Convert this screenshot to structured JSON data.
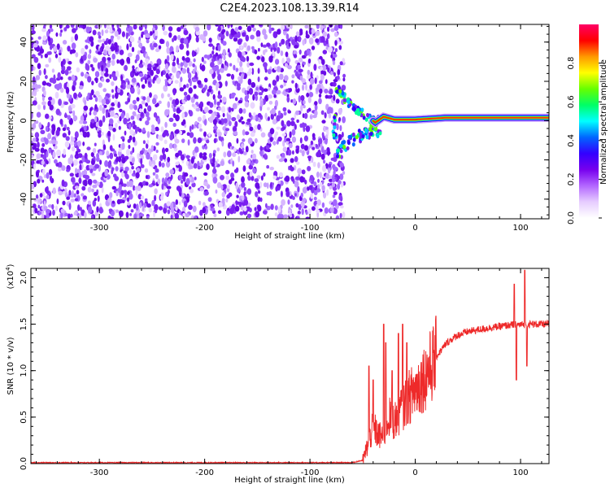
{
  "title": "C2E4.2023.108.13.39.R14",
  "chart_data": [
    {
      "type": "heatmap",
      "xlabel": "Height of straight line (km)",
      "ylabel": "Frequency (Hz)",
      "xlim": [
        -365,
        127
      ],
      "ylim": [
        -50,
        49
      ],
      "xticks": [
        -300,
        -200,
        -100,
        0,
        100
      ],
      "xtick_labels": [
        "-300",
        "-200",
        "-100",
        "0",
        "100"
      ],
      "yticks": [
        -40,
        -20,
        0,
        20,
        40
      ],
      "ytick_labels": [
        "-40",
        "-20",
        "0",
        "20",
        "40"
      ],
      "noise_region_x": [
        -365,
        -72
      ],
      "signal_line_x": [
        -72,
        127
      ],
      "signal_line_freq": [
        {
          "x": -75,
          "f": 17
        },
        {
          "x": -65,
          "f": 10
        },
        {
          "x": -55,
          "f": 5
        },
        {
          "x": -45,
          "f": 2
        },
        {
          "x": -38,
          "f": -1
        },
        {
          "x": -30,
          "f": 2
        },
        {
          "x": -20,
          "f": 0.5
        },
        {
          "x": 0,
          "f": 0.5
        },
        {
          "x": 30,
          "f": 1.5
        },
        {
          "x": 80,
          "f": 1.5
        },
        {
          "x": 127,
          "f": 1.5
        }
      ],
      "colorbar": {
        "label": "Normalized spectral amplitude",
        "ticks": [
          0.0,
          0.2,
          0.4,
          0.6,
          0.8
        ],
        "tick_labels": [
          "0.0",
          "0.2",
          "0.4",
          "0.6",
          "0.8"
        ],
        "range": [
          0.0,
          1.0
        ],
        "colors": [
          "#ffffff",
          "#e6ccff",
          "#b366ff",
          "#7700ee",
          "#3300ff",
          "#0066ff",
          "#00ffff",
          "#00ff66",
          "#66ff00",
          "#ffff00",
          "#ff9900",
          "#ff0000",
          "#ff0066"
        ]
      }
    },
    {
      "type": "line",
      "xlabel": "Height of straight line (km)",
      "ylabel": "SNR (10 * v/v)",
      "y_multiplier_label": "(x10",
      "y_multiplier_exp": "4",
      "y_multiplier_close": ")",
      "xlim": [
        -365,
        127
      ],
      "ylim": [
        0,
        2.1
      ],
      "xticks": [
        -300,
        -200,
        -100,
        0,
        100
      ],
      "xtick_labels": [
        "-300",
        "-200",
        "-100",
        "0",
        "100"
      ],
      "yticks": [
        0.0,
        0.5,
        1.0,
        1.5,
        2.0
      ],
      "ytick_labels": [
        "0.0",
        "0.5",
        "1.0",
        "1.5",
        "2.0"
      ],
      "line_color": "#ee2a2a",
      "envelope": [
        {
          "x": -365,
          "y": 0.005
        },
        {
          "x": -60,
          "y": 0.005
        },
        {
          "x": -50,
          "y": 0.03
        },
        {
          "x": -45,
          "y": 0.2
        },
        {
          "x": -40,
          "y": 0.4
        },
        {
          "x": -35,
          "y": 0.3
        },
        {
          "x": -30,
          "y": 0.3
        },
        {
          "x": -25,
          "y": 0.5
        },
        {
          "x": -20,
          "y": 0.45
        },
        {
          "x": -10,
          "y": 0.65
        },
        {
          "x": 0,
          "y": 0.8
        },
        {
          "x": 10,
          "y": 0.95
        },
        {
          "x": 20,
          "y": 1.15
        },
        {
          "x": 30,
          "y": 1.3
        },
        {
          "x": 40,
          "y": 1.38
        },
        {
          "x": 50,
          "y": 1.42
        },
        {
          "x": 70,
          "y": 1.46
        },
        {
          "x": 90,
          "y": 1.49
        },
        {
          "x": 110,
          "y": 1.5
        },
        {
          "x": 127,
          "y": 1.5
        }
      ],
      "spikes": [
        {
          "x": -44,
          "y": 1.05
        },
        {
          "x": -40,
          "y": 0.9
        },
        {
          "x": -30,
          "y": 1.5
        },
        {
          "x": -28,
          "y": 1.3
        },
        {
          "x": -22,
          "y": 1.0
        },
        {
          "x": -16,
          "y": 1.4
        },
        {
          "x": -12,
          "y": 1.5
        },
        {
          "x": -8,
          "y": 1.3
        },
        {
          "x": 94,
          "y": 1.93
        },
        {
          "x": 96,
          "y": 0.9
        },
        {
          "x": 104,
          "y": 2.08
        },
        {
          "x": 106,
          "y": 1.05
        }
      ]
    }
  ]
}
